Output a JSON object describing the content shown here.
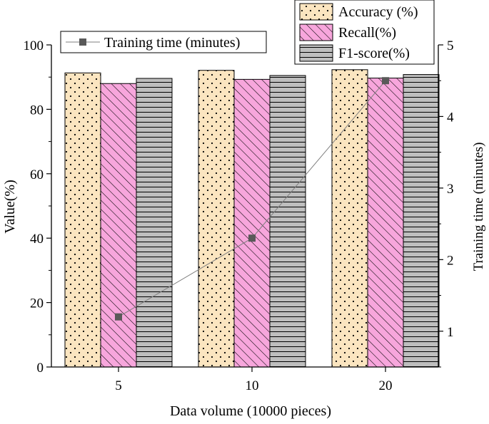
{
  "chart_data": {
    "type": "bar",
    "categories": [
      "5",
      "10",
      "20"
    ],
    "xlabel": "Data volume (10000 pieces)",
    "ylabel": "Value(%)",
    "ylim": [
      0,
      100
    ],
    "yticks": [
      "0",
      "20",
      "40",
      "60",
      "80",
      "100"
    ],
    "y2label": "Training time (minutes)",
    "y2lim": [
      0.5,
      5
    ],
    "y2ticks": [
      "1",
      "2",
      "3",
      "4",
      "5"
    ],
    "series": [
      {
        "name": "Accuracy (%)",
        "kind": "bar",
        "pattern": "dots",
        "color": "#fbe5c0",
        "values": [
          91.3,
          92.1,
          92.3
        ]
      },
      {
        "name": "Recall(%)",
        "kind": "bar",
        "pattern": "diagonal",
        "color": "#f7a6dc",
        "values": [
          88.0,
          89.3,
          89.7
        ]
      },
      {
        "name": "F1-score(%)",
        "kind": "bar",
        "pattern": "horizontal",
        "color": "#bebebe",
        "values": [
          89.6,
          90.5,
          90.8
        ]
      },
      {
        "name": "Training time (minutes)",
        "kind": "line",
        "axis": "right",
        "color": "#595959",
        "values": [
          1.2,
          2.3,
          4.5
        ]
      }
    ],
    "legend_position": "top-right"
  }
}
